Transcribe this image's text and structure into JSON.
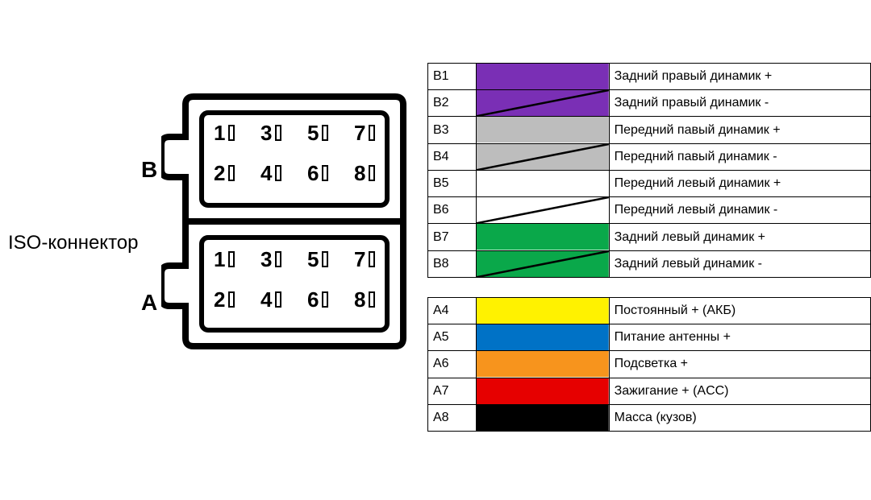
{
  "iso_label": "ISO-коннектор",
  "row_label_b": "B",
  "row_label_a": "A",
  "pins": [
    1,
    3,
    5,
    7,
    2,
    4,
    6,
    8
  ],
  "table_b": [
    {
      "pin": "B1",
      "color": "#7a2fb5",
      "stripe": false,
      "desc": "Задний правый динамик +"
    },
    {
      "pin": "B2",
      "color": "#7a2fb5",
      "stripe": true,
      "desc": "Задний правый динамик -"
    },
    {
      "pin": "B3",
      "color": "#bdbdbd",
      "stripe": false,
      "desc": "Передний павый динамик +"
    },
    {
      "pin": "B4",
      "color": "#bdbdbd",
      "stripe": true,
      "desc": "Передний павый динамик -"
    },
    {
      "pin": "B5",
      "color": "#ffffff",
      "stripe": false,
      "desc": "Передний левый динамик +"
    },
    {
      "pin": "B6",
      "color": "#ffffff",
      "stripe": true,
      "desc": "Передний левый динамик -"
    },
    {
      "pin": "B7",
      "color": "#0aa84a",
      "stripe": false,
      "desc": "Задний левый динамик +"
    },
    {
      "pin": "B8",
      "color": "#0aa84a",
      "stripe": true,
      "desc": "Задний левый динамик -"
    }
  ],
  "table_a": [
    {
      "pin": "A4",
      "color": "#fff200",
      "stripe": false,
      "desc": "Постоянный + (АКБ)"
    },
    {
      "pin": "A5",
      "color": "#0072c6",
      "stripe": false,
      "desc": "Питание антенны +"
    },
    {
      "pin": "A6",
      "color": "#f7941d",
      "stripe": false,
      "desc": "Подсветка +"
    },
    {
      "pin": "A7",
      "color": "#e60000",
      "stripe": false,
      "desc": "Зажигание + (ACC)"
    },
    {
      "pin": "A8",
      "color": "#000000",
      "stripe": false,
      "desc": "Масса (кузов)"
    }
  ]
}
